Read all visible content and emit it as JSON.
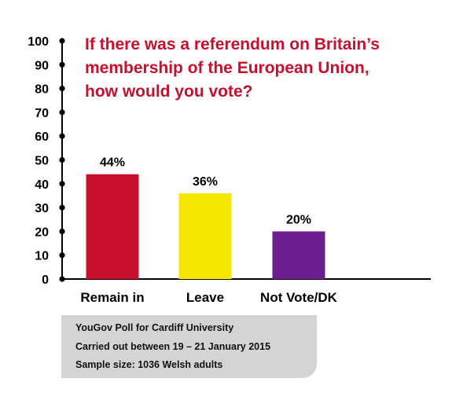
{
  "chart_data": {
    "type": "bar",
    "title_lines": [
      "If there was a referendum on Britain’s",
      "membership of the European Union,",
      "how would you vote?"
    ],
    "categories": [
      "Remain in",
      "Leave",
      "Not Vote/DK"
    ],
    "values": [
      44,
      36,
      20
    ],
    "value_labels": [
      "44%",
      "36%",
      "20%"
    ],
    "colors": [
      "#c8102e",
      "#f7e600",
      "#6c1f8f"
    ],
    "ylim": [
      0,
      100
    ],
    "yticks": [
      0,
      10,
      20,
      30,
      40,
      50,
      60,
      70,
      80,
      90,
      100
    ],
    "grid": false,
    "title_color": "#c8102e"
  },
  "note": {
    "lines": [
      "YouGov Poll for Cardiff University",
      "Carried out between 19 – 21 January 2015",
      "Sample size: 1036 Welsh adults"
    ]
  }
}
